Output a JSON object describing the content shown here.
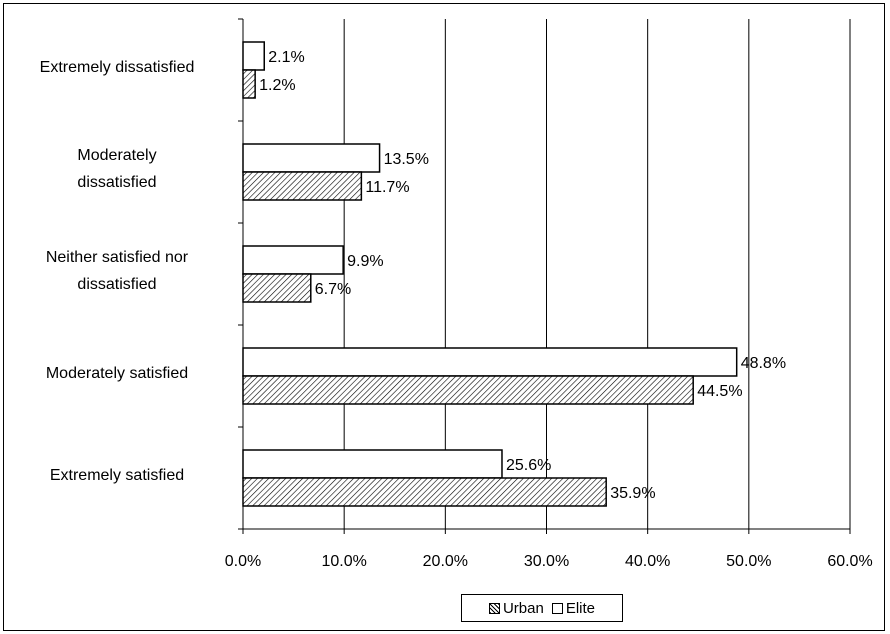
{
  "chart_data": {
    "type": "bar",
    "orientation": "horizontal",
    "categories": [
      "Extremely dissatisfied",
      "Moderately dissatisfied",
      "Neither satisfied nor dissatisfied",
      "Moderately satisfied",
      "Extremely satisfied"
    ],
    "category_lines": [
      [
        "Extremely dissatisfied"
      ],
      [
        "Moderately",
        "dissatisfied"
      ],
      [
        "Neither satisfied nor",
        "dissatisfied"
      ],
      [
        "Moderately satisfied"
      ],
      [
        "Extremely satisfied"
      ]
    ],
    "series": [
      {
        "name": "Elite",
        "fill": "plain",
        "values": [
          2.1,
          13.5,
          9.9,
          48.8,
          25.6
        ],
        "labels": [
          "2.1%",
          "13.5%",
          "9.9%",
          "48.8%",
          "25.6%"
        ]
      },
      {
        "name": "Urban",
        "fill": "hatched",
        "values": [
          1.2,
          11.7,
          6.7,
          44.5,
          35.9
        ],
        "labels": [
          "1.2%",
          "11.7%",
          "6.7%",
          "44.5%",
          "35.9%"
        ]
      }
    ],
    "xlim": [
      0,
      60
    ],
    "xticks": [
      0,
      10,
      20,
      30,
      40,
      50,
      60
    ],
    "xtick_labels": [
      "0.0%",
      "10.0%",
      "20.0%",
      "30.0%",
      "40.0%",
      "50.0%",
      "60.0%"
    ],
    "grid": "vertical",
    "legend_position": "bottom-center",
    "legend": [
      "Urban",
      "Elite"
    ],
    "colors": {
      "bar_outline": "#000000",
      "background": "#ffffff",
      "grid": "#000000"
    }
  }
}
